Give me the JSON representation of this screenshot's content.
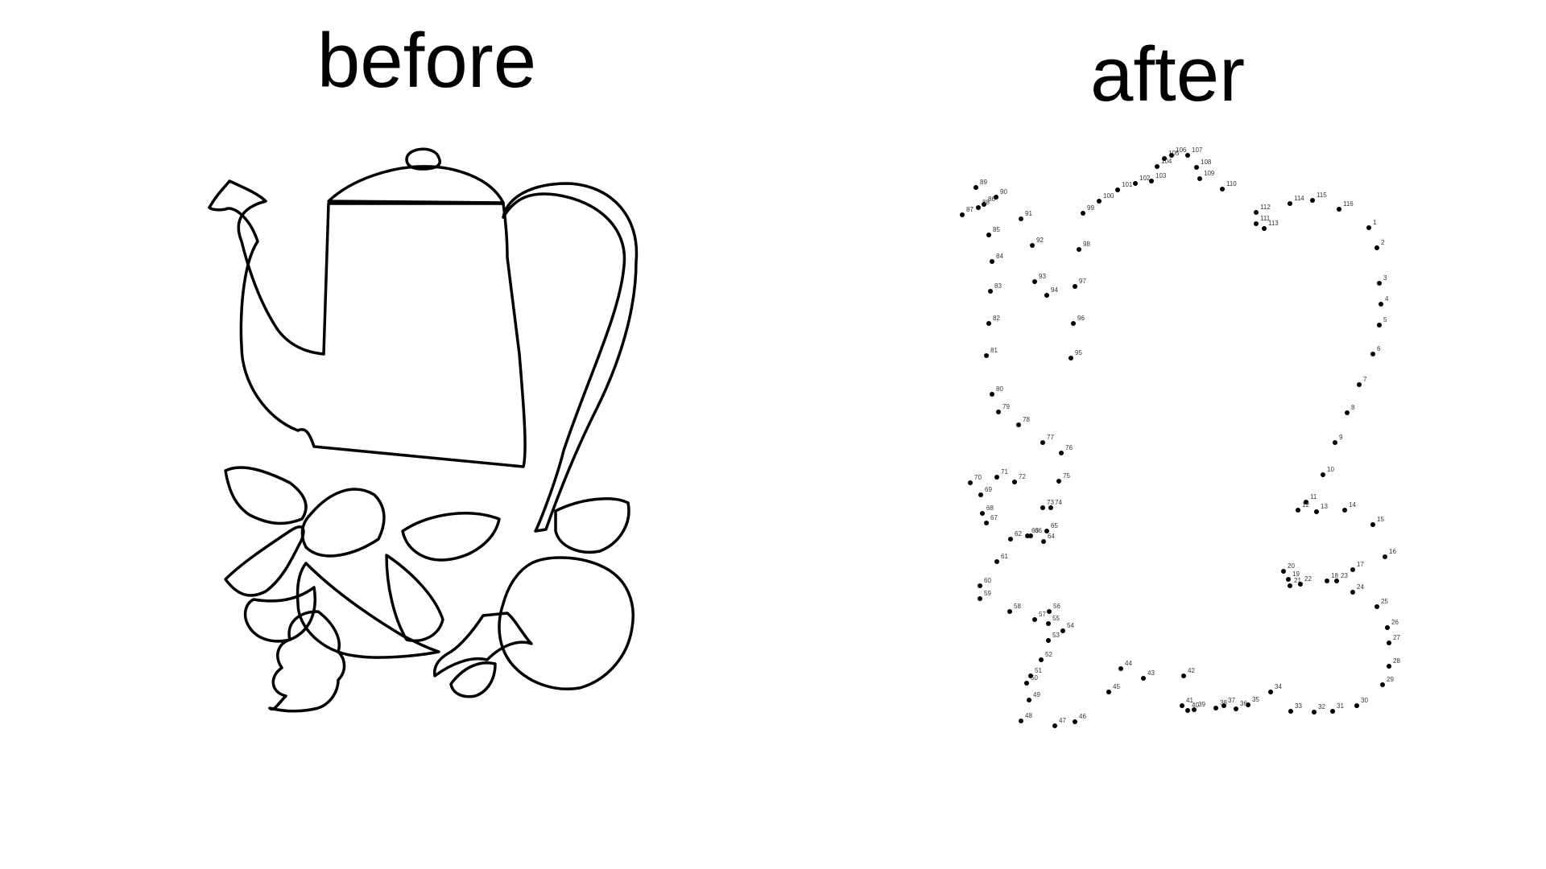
{
  "panels": {
    "before": {
      "title": "before",
      "figure": "teapot-outline"
    },
    "after": {
      "title": "after",
      "figure": "connect-the-dots-teapot",
      "dot_count": 117
    }
  },
  "colors": {
    "background": "#ffffff",
    "ink": "#000000",
    "number_text": "#333333"
  }
}
